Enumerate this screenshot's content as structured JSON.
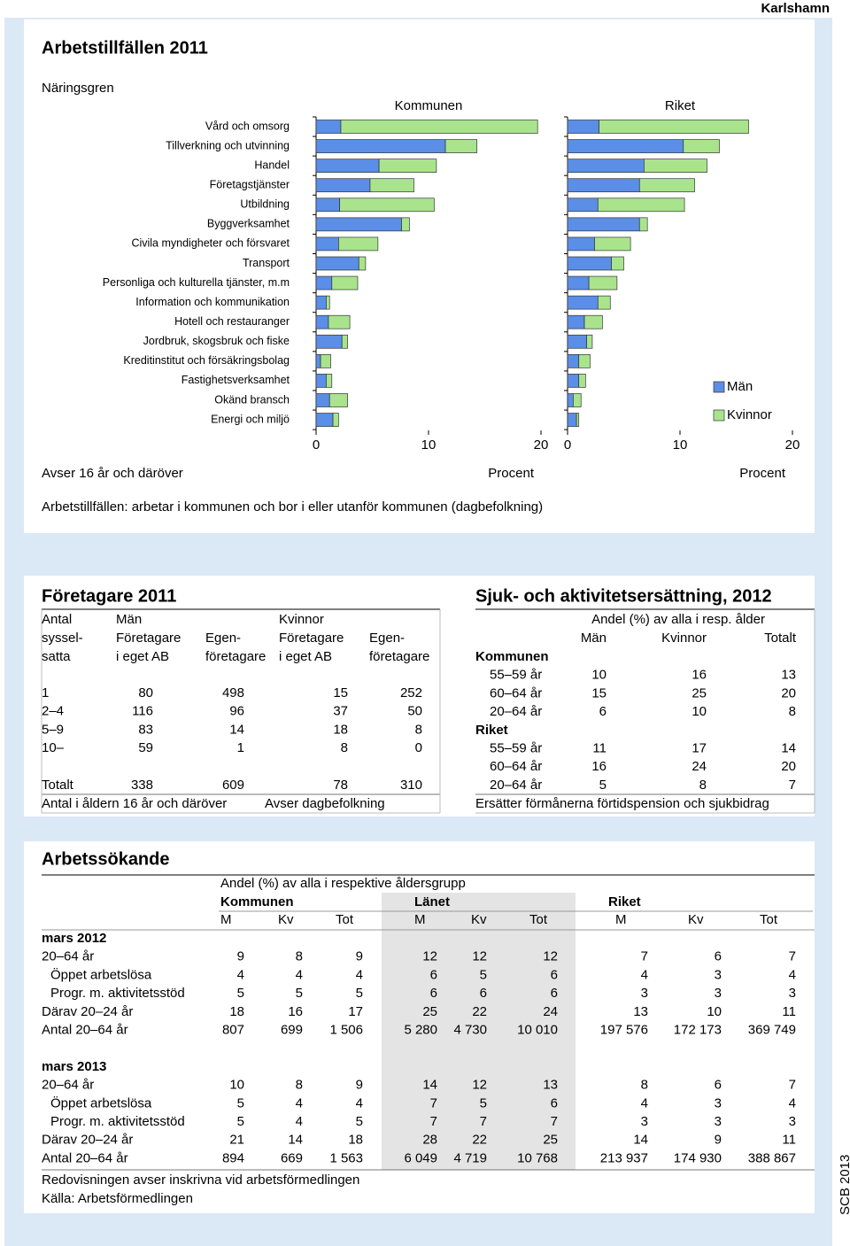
{
  "header": {
    "municipality": "Karlshamn",
    "credit": "SCB 2013"
  },
  "chart_data": {
    "type": "bar",
    "orientation": "horizontal",
    "stacked": true,
    "title": "Arbetstillfällen 2011",
    "subtitle": "Näringsgren",
    "categories": [
      "Vård och omsorg",
      "Tillverkning och utvinning",
      "Handel",
      "Företagstjänster",
      "Utbildning",
      "Byggverksamhet",
      "Civila myndigheter och försvaret",
      "Transport",
      "Personliga och kulturella tjänster, m.m",
      "Information och kommunikation",
      "Hotell och restauranger",
      "Jordbruk, skogsbruk och fiske",
      "Kreditinstitut och försäkringsbolag",
      "Fastighetsverksamhet",
      "Okänd bransch",
      "Energi och miljö"
    ],
    "series": [
      {
        "name": "Män",
        "color": "#5b8ee6"
      },
      {
        "name": "Kvinnor",
        "color": "#a9e48c"
      }
    ],
    "legend": "right",
    "panels": [
      {
        "title": "Kommunen",
        "xlim": [
          0,
          20
        ],
        "xticks": [
          0,
          10,
          20
        ],
        "x_label": "Procent",
        "series": [
          {
            "values": [
              2.2,
              11.5,
              5.6,
              4.8,
              2.1,
              7.6,
              2.0,
              3.8,
              1.4,
              0.9,
              1.1,
              2.3,
              0.4,
              0.9,
              1.2,
              1.5
            ]
          },
          {
            "values": [
              17.5,
              2.8,
              5.1,
              3.9,
              8.4,
              0.7,
              3.5,
              0.6,
              2.3,
              0.3,
              1.9,
              0.5,
              0.9,
              0.5,
              1.6,
              0.5
            ]
          }
        ]
      },
      {
        "title": "Riket",
        "xlim": [
          0,
          20
        ],
        "xticks": [
          0,
          10,
          20
        ],
        "x_label": "Procent",
        "series": [
          {
            "values": [
              2.8,
              10.3,
              6.8,
              6.4,
              2.7,
              6.4,
              2.4,
              3.9,
              1.9,
              2.7,
              1.5,
              1.7,
              1.0,
              1.0,
              0.5,
              0.8
            ]
          },
          {
            "values": [
              13.3,
              3.2,
              5.6,
              4.9,
              7.7,
              0.7,
              3.2,
              1.1,
              2.5,
              1.1,
              1.6,
              0.5,
              1.0,
              0.6,
              0.7,
              0.2
            ]
          }
        ]
      }
    ],
    "notes": [
      "Avser 16 år och däröver",
      "Arbetstillfällen: arbetar i kommunen och bor i eller utanför kommunen (dagbefolkning)"
    ]
  },
  "foretagare": {
    "title": "Företagare 2011",
    "header": {
      "row1": [
        "Antal",
        "Män",
        "Kvinnor"
      ],
      "row2": [
        "syssel-",
        "Företagare",
        "Egen-",
        "Företagare",
        "Egen-"
      ],
      "row3": [
        "satta",
        "i eget AB",
        "företagare",
        "i eget AB",
        "företagare"
      ]
    },
    "rows": [
      [
        "1",
        "80",
        "498",
        "15",
        "252"
      ],
      [
        "2–4",
        "116",
        "96",
        "37",
        "50"
      ],
      [
        "5–9",
        "83",
        "14",
        "18",
        "8"
      ],
      [
        "10–",
        "59",
        "1",
        "8",
        "0"
      ],
      [
        "Totalt",
        "338",
        "609",
        "78",
        "310"
      ]
    ],
    "notes": [
      "Antal i åldern 16 år och däröver",
      "Avser dagbefolkning"
    ]
  },
  "sjuk": {
    "title": "Sjuk- och aktivitetsersättning, 2012",
    "caption": "Andel (%) av alla i resp. ålder",
    "columns": [
      "Män",
      "Kvinnor",
      "Totalt"
    ],
    "groups": [
      {
        "name": "Kommunen",
        "rows": [
          {
            "label": "55–59 år",
            "values": [
              "10",
              "16",
              "13"
            ]
          },
          {
            "label": "60–64 år",
            "values": [
              "15",
              "25",
              "20"
            ]
          },
          {
            "label": "20–64 år",
            "values": [
              "6",
              "10",
              "8"
            ]
          }
        ]
      },
      {
        "name": "Riket",
        "rows": [
          {
            "label": "55–59 år",
            "values": [
              "11",
              "17",
              "14"
            ]
          },
          {
            "label": "60–64 år",
            "values": [
              "16",
              "24",
              "20"
            ]
          },
          {
            "label": "20–64 år",
            "values": [
              "5",
              "8",
              "7"
            ]
          }
        ]
      }
    ],
    "note": "Ersätter förmånerna förtidspension och sjukbidrag"
  },
  "arbetssokande": {
    "title": "Arbetssökande",
    "caption": "Andel (%) av alla i respektive åldersgrupp",
    "regions": [
      "Kommunen",
      "Länet",
      "Riket"
    ],
    "subcolumns": [
      "M",
      "Kv",
      "Tot"
    ],
    "blocks": [
      {
        "period": "mars 2012",
        "rows": [
          {
            "label": "20–64 år",
            "values": [
              "9",
              "8",
              "9",
              "12",
              "12",
              "12",
              "7",
              "6",
              "7"
            ]
          },
          {
            "label": "Öppet arbetslösa",
            "values": [
              "4",
              "4",
              "4",
              "6",
              "5",
              "6",
              "4",
              "3",
              "4"
            ]
          },
          {
            "label": "Progr. m. aktivitetsstöd",
            "values": [
              "5",
              "5",
              "5",
              "6",
              "6",
              "6",
              "3",
              "3",
              "3"
            ]
          },
          {
            "label": "Därav 20–24 år",
            "values": [
              "18",
              "16",
              "17",
              "25",
              "22",
              "24",
              "13",
              "10",
              "11"
            ]
          },
          {
            "label": "Antal 20–64 år",
            "values": [
              "807",
              "699",
              "1 506",
              "5 280",
              "4 730",
              "10 010",
              "197 576",
              "172 173",
              "369 749"
            ]
          }
        ]
      },
      {
        "period": "mars 2013",
        "rows": [
          {
            "label": "20–64 år",
            "values": [
              "10",
              "8",
              "9",
              "14",
              "12",
              "13",
              "8",
              "6",
              "7"
            ]
          },
          {
            "label": "Öppet arbetslösa",
            "values": [
              "5",
              "4",
              "4",
              "7",
              "5",
              "6",
              "4",
              "3",
              "4"
            ]
          },
          {
            "label": "Progr. m. aktivitetsstöd",
            "values": [
              "5",
              "4",
              "5",
              "7",
              "7",
              "7",
              "3",
              "3",
              "3"
            ]
          },
          {
            "label": "Därav 20–24 år",
            "values": [
              "21",
              "14",
              "18",
              "28",
              "22",
              "25",
              "14",
              "9",
              "11"
            ]
          },
          {
            "label": "Antal 20–64 år",
            "values": [
              "894",
              "669",
              "1 563",
              "6 049",
              "4 719",
              "10 768",
              "213 937",
              "174 930",
              "388 867"
            ]
          }
        ]
      }
    ],
    "notes": [
      "Redovisningen avser inskrivna vid arbetsförmedlingen",
      "Källa: Arbetsförmedlingen"
    ]
  }
}
